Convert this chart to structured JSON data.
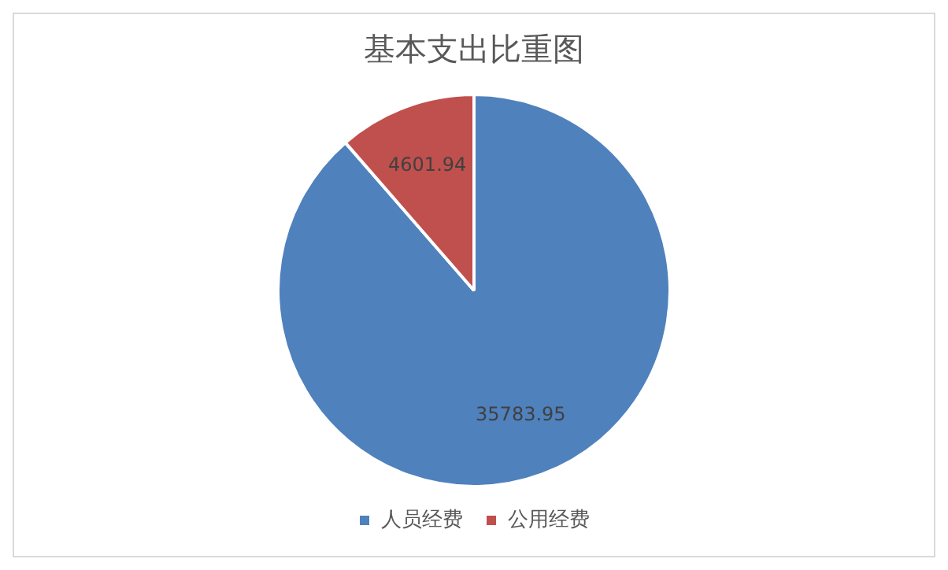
{
  "chart_data": {
    "type": "pie",
    "title": "基本支出比重图",
    "categories": [
      "人员经费",
      "公用经费"
    ],
    "values": [
      35783.95,
      4601.94
    ],
    "colors": [
      "#4f81bd",
      "#c0504d"
    ],
    "data_labels": true,
    "legend": "bottom"
  }
}
